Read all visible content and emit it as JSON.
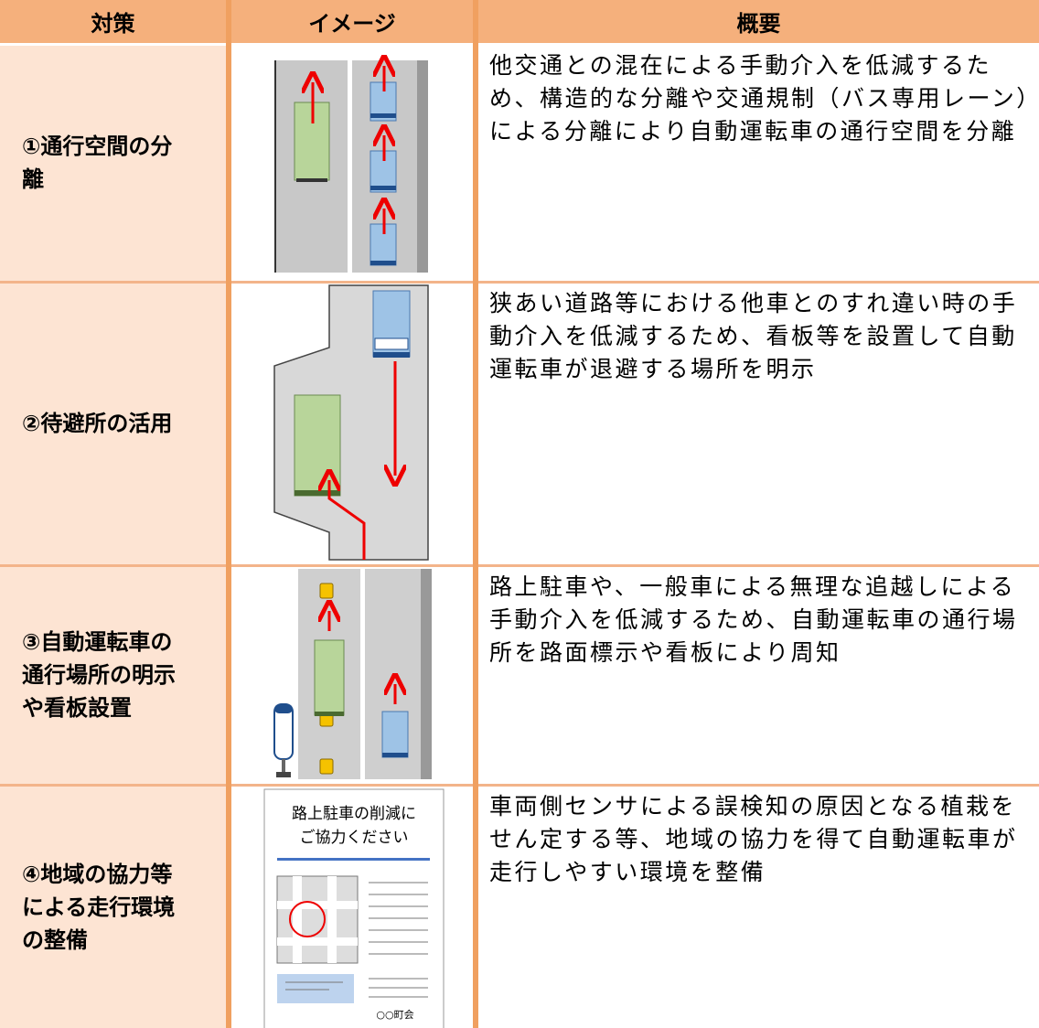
{
  "header": [
    "対策",
    "イメージ",
    "概要"
  ],
  "rows": [
    {
      "measure": "①通行空間の分離",
      "summary": "他交通との混在による手動介入を低減するため、構造的な分離や交通規制（バス専用レーン）による分離により自動運転車の通行空間を分離"
    },
    {
      "measure": "②待避所の活用",
      "summary": "狭あい道路等における他車とのすれ違い時の手動介入を低減するため、看板等を設置して自動運転車が退避する場所を明示"
    },
    {
      "measure": "③自動運転車の通行場所の明示や看板設置",
      "summary": "路上駐車や、一般車による無理な追越しによる手動介入を低減するため、自動運転車の通行場所を路面標示や看板により周知"
    },
    {
      "measure": "④地域の協力等による走行環境の整備",
      "summary": "車両側センサによる誤検知の原因となる植栽をせん定する等、地域の協力を得て自動運転車が走行しやすい環境を整備"
    }
  ],
  "poster": {
    "title_lines": [
      "路上駐車の削減に",
      "ご協力ください"
    ],
    "footer": "○○町会"
  }
}
